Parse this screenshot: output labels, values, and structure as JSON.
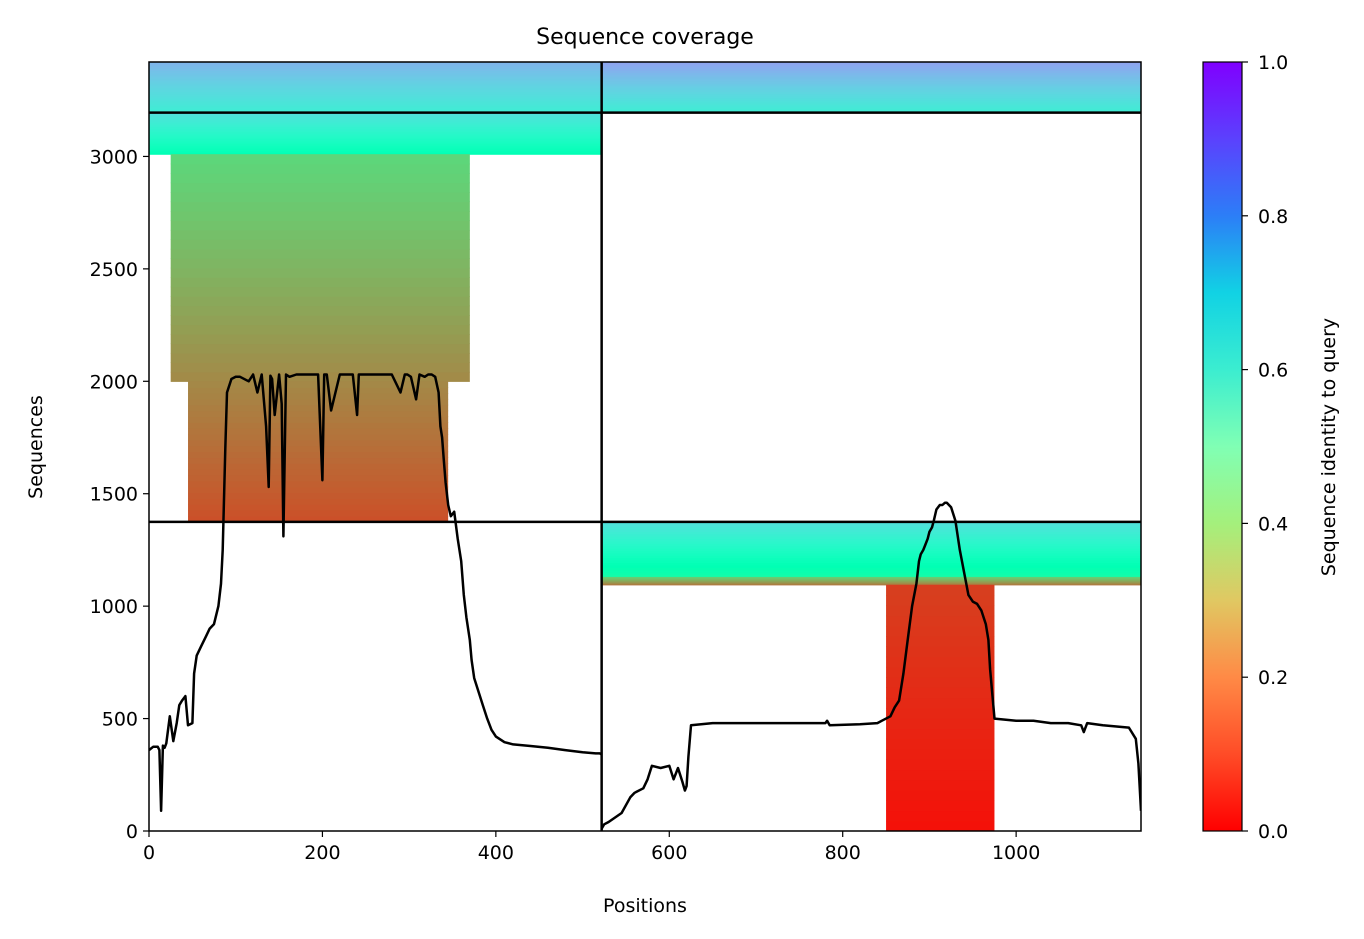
{
  "chart_data": {
    "type": "heatmap",
    "title": "Sequence coverage",
    "xlabel": "Positions",
    "ylabel": "Sequences",
    "xlim": [
      0,
      1144
    ],
    "ylim": [
      0,
      3420
    ],
    "x_ticks": [
      0,
      200,
      400,
      600,
      800,
      1000
    ],
    "y_ticks": [
      0,
      500,
      1000,
      1500,
      2000,
      2500,
      3000
    ],
    "grid": false,
    "chain_boundaries": {
      "x": [
        522
      ],
      "y": [
        1375,
        3195
      ]
    },
    "colorbar": {
      "label": "Sequence identity to query",
      "range": [
        0,
        1
      ],
      "ticks": [
        0.0,
        0.2,
        0.4,
        0.6,
        0.8,
        1.0
      ],
      "tick_labels": [
        "0.0",
        "0.2",
        "0.4",
        "0.6",
        "0.8",
        "1.0"
      ],
      "colormap": "rainbow_r"
    },
    "coverage_blocks": [
      {
        "x": [
          0,
          522
        ],
        "y": [
          3195,
          3420
        ],
        "identity": [
          0.62,
          0.75
        ]
      },
      {
        "x": [
          0,
          522
        ],
        "y": [
          3010,
          3195
        ],
        "identity": [
          0.5,
          0.66
        ]
      },
      {
        "x": [
          25,
          370
        ],
        "y": [
          2000,
          3010
        ],
        "identity": [
          0.18,
          0.32
        ]
      },
      {
        "x": [
          45,
          345
        ],
        "y": [
          1375,
          2000
        ],
        "identity": [
          0.1,
          0.18
        ]
      },
      {
        "x": [
          522,
          1144
        ],
        "y": [
          3195,
          3420
        ],
        "identity": [
          0.62,
          0.78
        ]
      },
      {
        "x": [
          522,
          1144
        ],
        "y": [
          1120,
          1375
        ],
        "identity": [
          0.45,
          0.66
        ]
      },
      {
        "x": [
          522,
          1144
        ],
        "y": [
          1095,
          1130
        ],
        "identity": [
          0.15,
          0.3
        ]
      },
      {
        "x": [
          850,
          975
        ],
        "y": [
          0,
          1095
        ],
        "identity": [
          0.02,
          0.08
        ]
      }
    ],
    "series": [
      {
        "x": [
          0,
          5,
          10,
          12,
          14,
          16,
          18,
          20,
          24,
          28,
          32,
          35,
          38,
          42,
          45,
          50,
          52,
          55,
          60,
          65,
          70,
          75,
          80,
          83,
          85,
          88,
          90,
          95,
          100,
          105,
          115,
          120,
          125,
          130,
          135,
          138,
          140,
          142,
          145,
          150,
          153,
          155,
          158,
          162,
          170,
          180,
          195,
          200,
          202,
          205,
          210,
          220,
          235,
          240,
          242,
          245,
          260,
          280,
          290,
          295,
          298,
          302,
          308,
          312,
          318,
          322,
          326,
          330,
          334,
          336,
          338,
          340,
          342,
          345,
          348,
          352,
          356,
          360,
          363,
          366,
          370,
          372,
          375,
          380,
          385,
          390,
          395,
          400,
          410,
          420,
          440,
          460,
          480,
          500,
          515,
          520,
          522
        ],
        "y": [
          360,
          375,
          375,
          360,
          90,
          380,
          370,
          390,
          510,
          400,
          480,
          560,
          580,
          600,
          470,
          480,
          700,
          780,
          820,
          860,
          900,
          920,
          1000,
          1100,
          1250,
          1700,
          1950,
          2010,
          2020,
          2020,
          2000,
          2030,
          1950,
          2030,
          1800,
          1530,
          2025,
          2010,
          1850,
          2030,
          1900,
          1310,
          2030,
          2020,
          2030,
          2030,
          2030,
          1560,
          2030,
          2030,
          1870,
          2030,
          2030,
          1850,
          2030,
          2030,
          2030,
          2030,
          1950,
          2030,
          2030,
          2020,
          1920,
          2030,
          2020,
          2030,
          2030,
          2020,
          1950,
          1800,
          1750,
          1650,
          1550,
          1450,
          1400,
          1420,
          1300,
          1200,
          1050,
          950,
          850,
          760,
          680,
          620,
          560,
          500,
          450,
          420,
          395,
          385,
          378,
          370,
          360,
          350,
          345,
          345,
          340
        ]
      },
      {
        "x": [
          522,
          525,
          530,
          545,
          555,
          560,
          570,
          575,
          580,
          590,
          600,
          605,
          610,
          615,
          618,
          620,
          622,
          625,
          650,
          700,
          750,
          780,
          782,
          785,
          820,
          840,
          845,
          855,
          860,
          865,
          870,
          875,
          880,
          885,
          888,
          890,
          893,
          895,
          898,
          900,
          903,
          905,
          908,
          912,
          915,
          918,
          920,
          925,
          930,
          935,
          940,
          945,
          950,
          955,
          960,
          965,
          968,
          970,
          975,
          1000,
          1020,
          1040,
          1060,
          1075,
          1078,
          1082,
          1100,
          1130,
          1138,
          1141,
          1144
        ],
        "y": [
          10,
          30,
          40,
          80,
          150,
          170,
          190,
          230,
          290,
          280,
          290,
          230,
          280,
          220,
          180,
          200,
          330,
          470,
          480,
          480,
          480,
          480,
          490,
          470,
          475,
          480,
          490,
          510,
          550,
          580,
          700,
          850,
          1000,
          1100,
          1200,
          1230,
          1250,
          1270,
          1300,
          1330,
          1350,
          1380,
          1430,
          1450,
          1450,
          1460,
          1460,
          1440,
          1380,
          1250,
          1150,
          1050,
          1020,
          1010,
          980,
          920,
          850,
          720,
          500,
          490,
          490,
          480,
          480,
          470,
          440,
          480,
          470,
          460,
          410,
          300,
          90
        ]
      }
    ]
  }
}
